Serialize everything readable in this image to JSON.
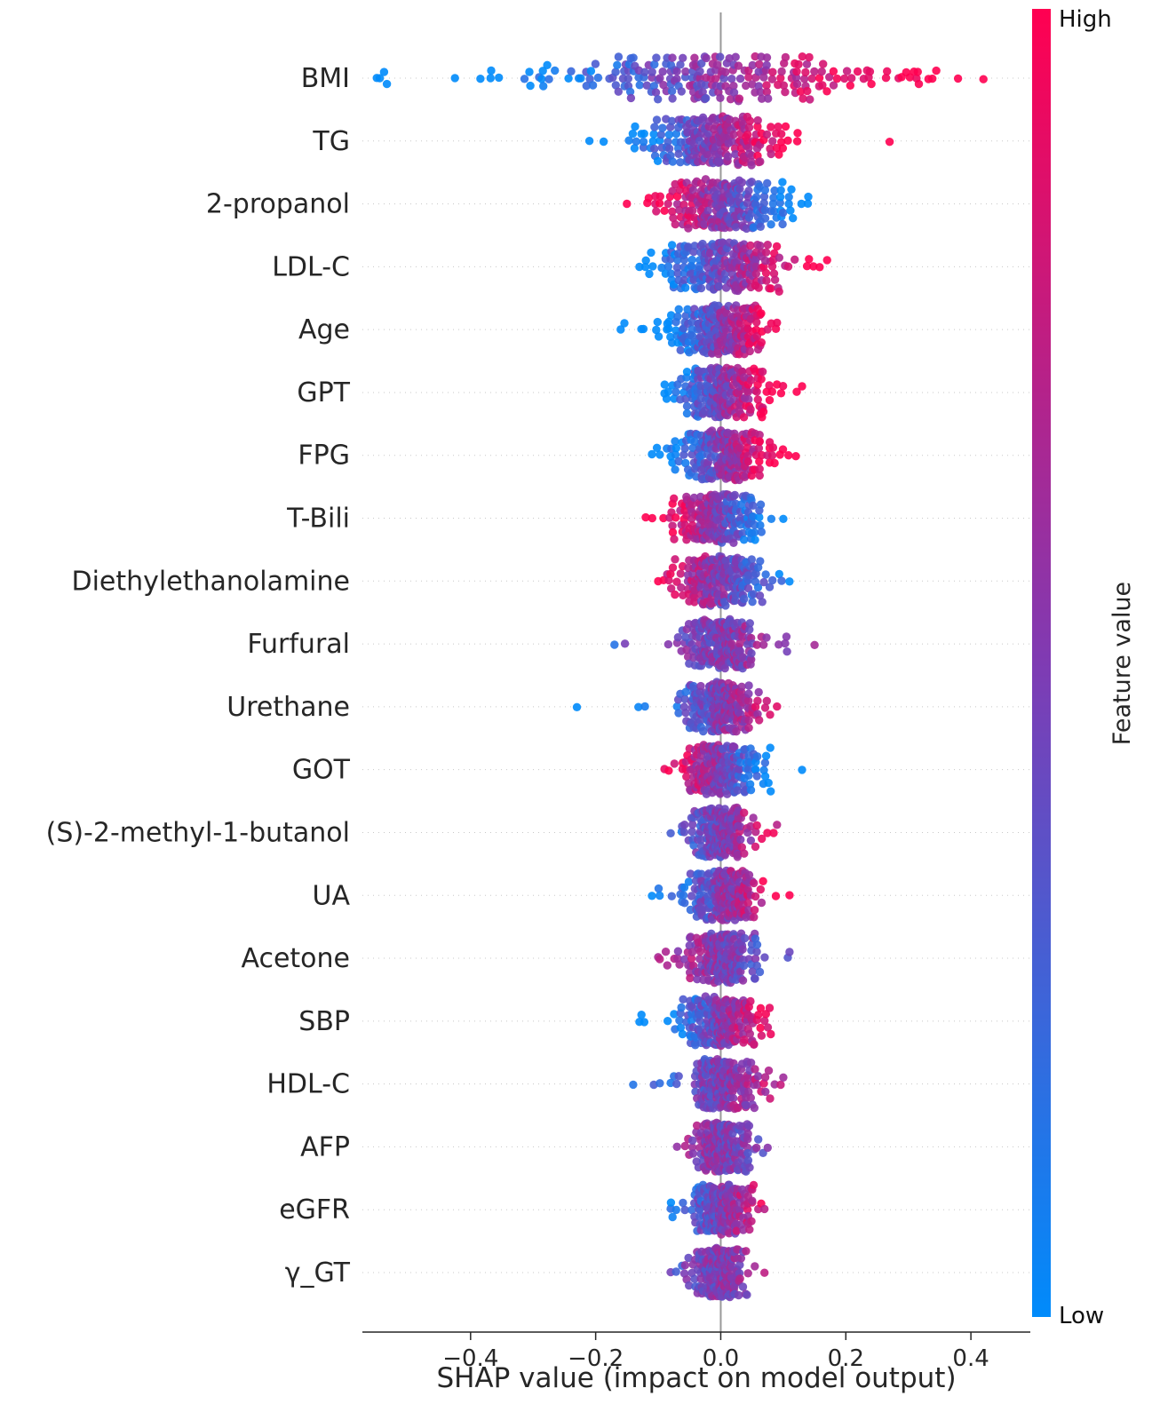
{
  "chart_data": {
    "type": "scatter",
    "variant": "shap-beeswarm-summary",
    "title": "",
    "xlabel": "SHAP value (impact on model output)",
    "x_ticks": [
      "−0.4",
      "−0.2",
      "0.0",
      "0.2",
      "0.4"
    ],
    "x_tick_values": [
      -0.4,
      -0.2,
      0.0,
      0.2,
      0.4
    ],
    "xlim": [
      -0.573,
      0.495
    ],
    "grid": "dotted-horizontal",
    "zero_line_color": "#999999",
    "axis_color": "#262626",
    "gridline_color": "#c8c8c8",
    "points_per_feature": 240,
    "colorbar": {
      "label": "Feature value",
      "high_label": "High",
      "low_label": "Low",
      "high_color": "#ff0051",
      "mid_color": "#7f3bb3",
      "low_color": "#008bfb"
    },
    "features": [
      {
        "name": "BMI",
        "shap_min": -0.55,
        "shap_max": 0.42,
        "center": -0.03,
        "sigma": 0.17,
        "color_corr": 0.92
      },
      {
        "name": "TG",
        "shap_min": -0.21,
        "shap_max": 0.27,
        "center": -0.02,
        "sigma": 0.055,
        "color_corr": 0.7
      },
      {
        "name": "2-propanol",
        "shap_min": -0.15,
        "shap_max": 0.14,
        "center": 0.005,
        "sigma": 0.05,
        "color_corr": -0.7
      },
      {
        "name": "LDL-C",
        "shap_min": -0.13,
        "shap_max": 0.17,
        "center": 0.01,
        "sigma": 0.05,
        "color_corr": 0.65
      },
      {
        "name": "Age",
        "shap_min": -0.16,
        "shap_max": 0.09,
        "center": 0.0,
        "sigma": 0.04,
        "color_corr": 0.75
      },
      {
        "name": "GPT",
        "shap_min": -0.09,
        "shap_max": 0.13,
        "center": 0.0,
        "sigma": 0.035,
        "color_corr": 0.65
      },
      {
        "name": "FPG",
        "shap_min": -0.11,
        "shap_max": 0.12,
        "center": 0.0,
        "sigma": 0.035,
        "color_corr": 0.65
      },
      {
        "name": "T-Bili",
        "shap_min": -0.12,
        "shap_max": 0.1,
        "center": -0.005,
        "sigma": 0.035,
        "color_corr": -0.65
      },
      {
        "name": "Diethylethanolamine",
        "shap_min": -0.1,
        "shap_max": 0.11,
        "center": 0.0,
        "sigma": 0.035,
        "color_corr": -0.45
      },
      {
        "name": "Furfural",
        "shap_min": -0.17,
        "shap_max": 0.15,
        "center": 0.0,
        "sigma": 0.03,
        "color_corr": 0.1
      },
      {
        "name": "Urethane",
        "shap_min": -0.23,
        "shap_max": 0.09,
        "center": 0.0,
        "sigma": 0.03,
        "color_corr": 0.35
      },
      {
        "name": "GOT",
        "shap_min": -0.09,
        "shap_max": 0.13,
        "center": 0.0,
        "sigma": 0.03,
        "color_corr": -0.55
      },
      {
        "name": "(S)-2-methyl-1-butanol",
        "shap_min": -0.08,
        "shap_max": 0.09,
        "center": 0.0,
        "sigma": 0.026,
        "color_corr": 0.3
      },
      {
        "name": "UA",
        "shap_min": -0.11,
        "shap_max": 0.11,
        "center": 0.0,
        "sigma": 0.03,
        "color_corr": 0.45
      },
      {
        "name": "Acetone",
        "shap_min": -0.1,
        "shap_max": 0.11,
        "center": 0.0,
        "sigma": 0.028,
        "color_corr": -0.2
      },
      {
        "name": "SBP",
        "shap_min": -0.13,
        "shap_max": 0.08,
        "center": 0.0,
        "sigma": 0.028,
        "color_corr": 0.5
      },
      {
        "name": "HDL-C",
        "shap_min": -0.14,
        "shap_max": 0.1,
        "center": 0.0,
        "sigma": 0.028,
        "color_corr": 0.25
      },
      {
        "name": "AFP",
        "shap_min": -0.07,
        "shap_max": 0.075,
        "center": 0.0,
        "sigma": 0.022,
        "color_corr": -0.1
      },
      {
        "name": "eGFR",
        "shap_min": -0.08,
        "shap_max": 0.07,
        "center": 0.0,
        "sigma": 0.022,
        "color_corr": 0.35
      },
      {
        "name": "γ_GT",
        "shap_min": -0.08,
        "shap_max": 0.07,
        "center": 0.0,
        "sigma": 0.022,
        "color_corr": 0.1
      }
    ]
  }
}
